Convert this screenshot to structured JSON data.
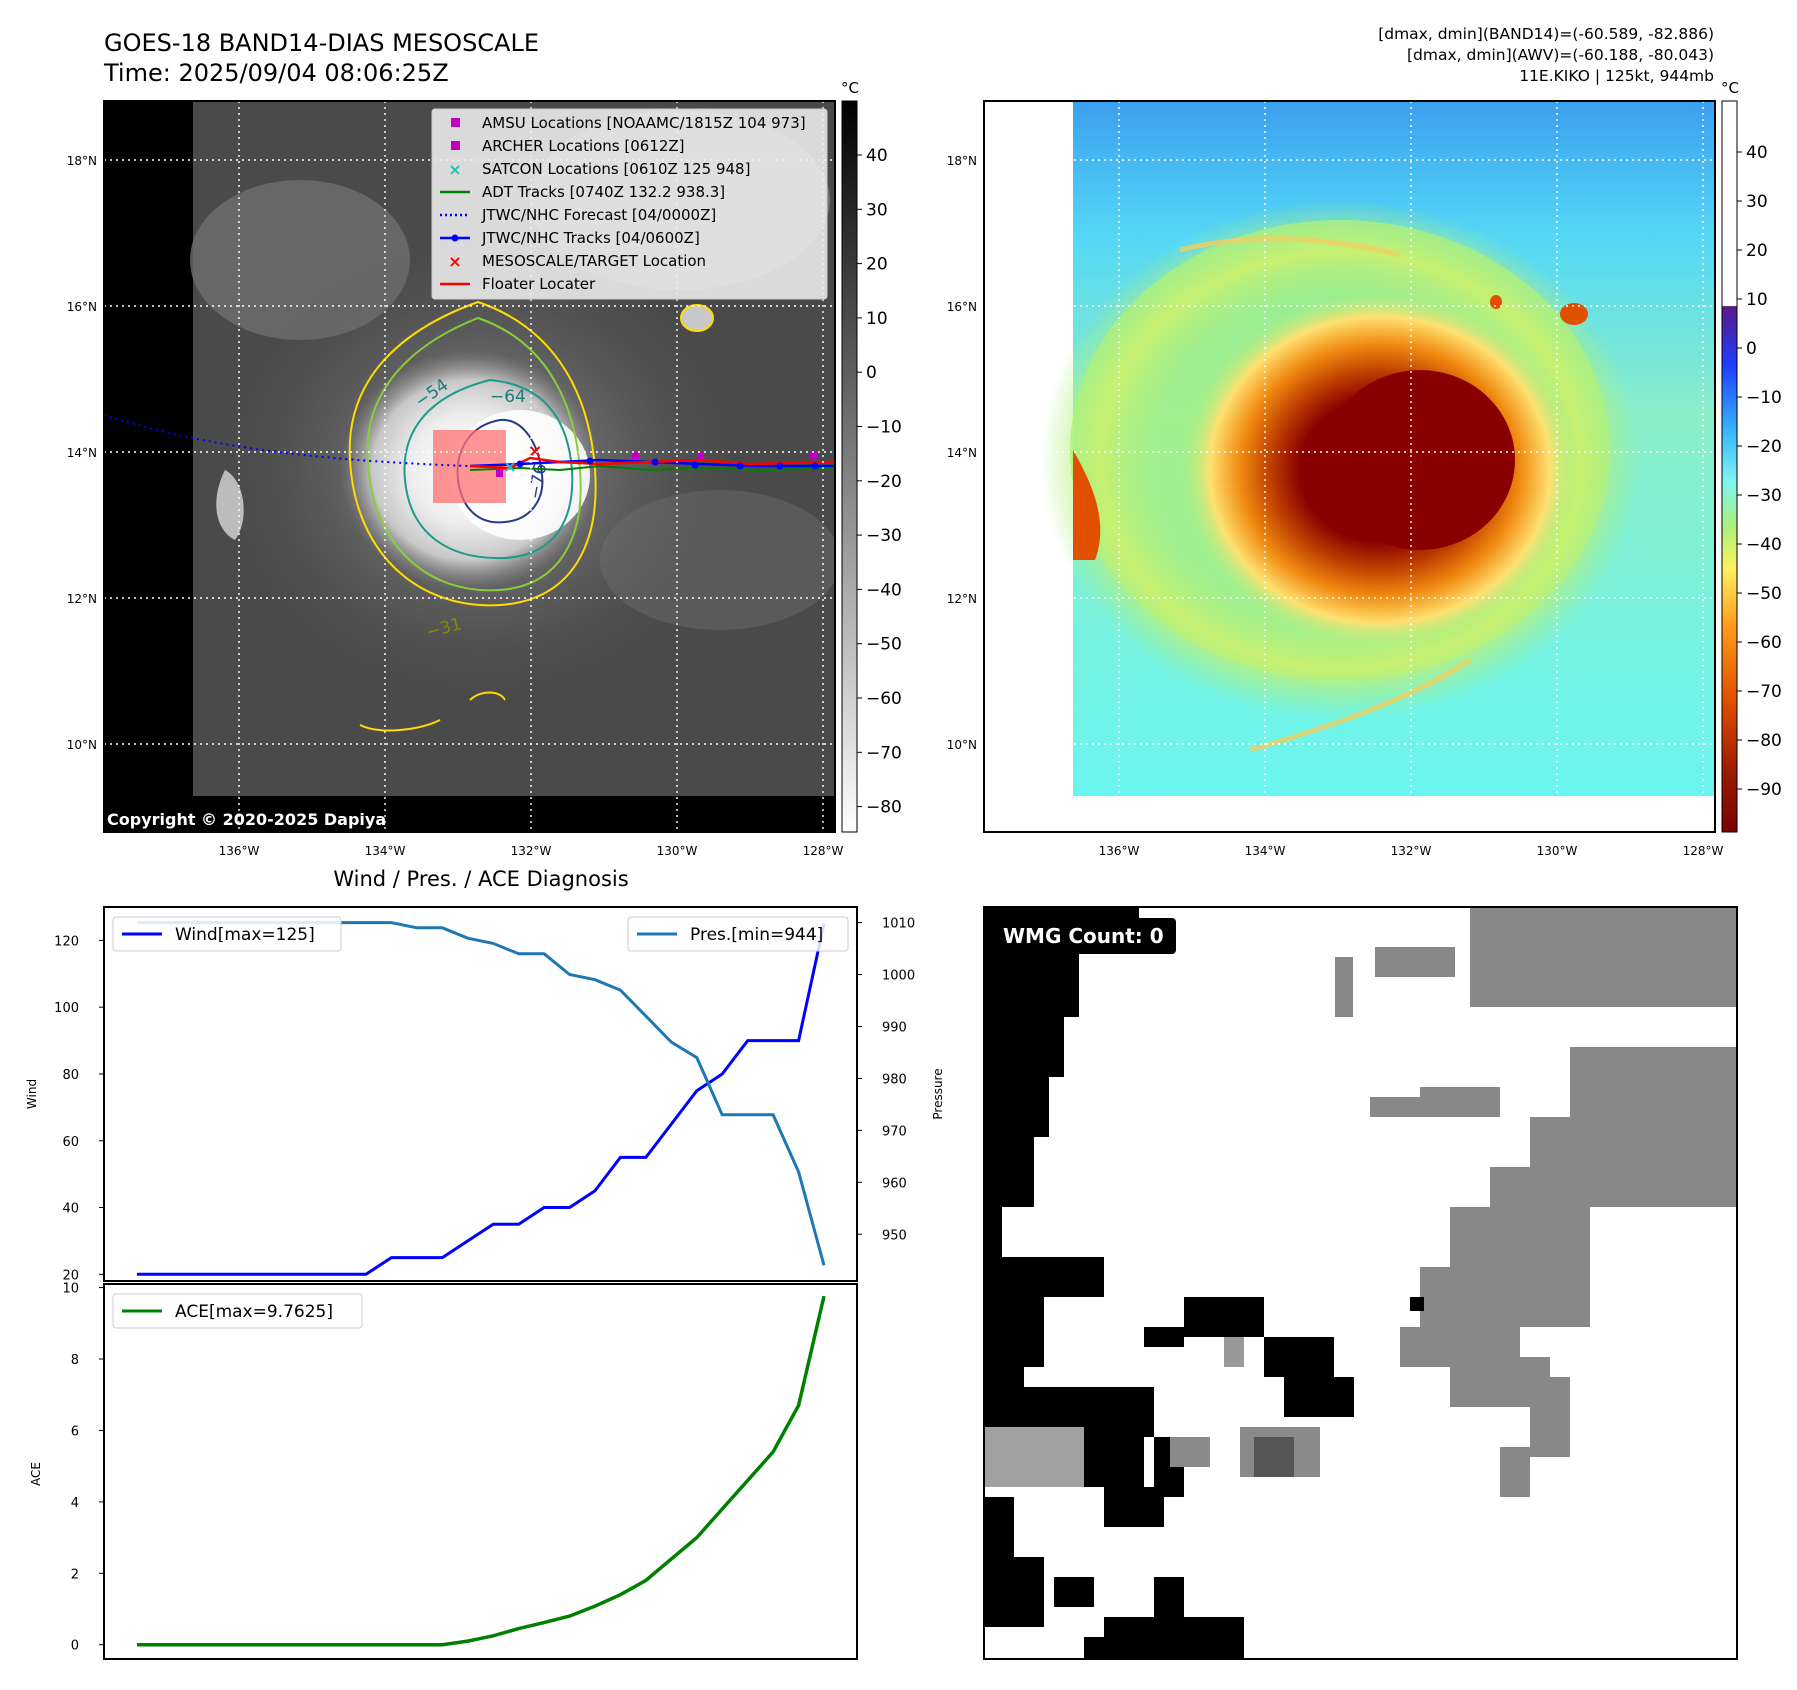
{
  "header": {
    "title_line1": "GOES-18 BAND14-DIAS MESOSCALE",
    "title_line2": "Time: 2025/09/04 08:06:25Z",
    "right_line1": "[dmax, dmin](BAND14)=(-60.589, -82.886)",
    "right_line2": "[dmax, dmin](AWV)=(-60.188, -80.043)",
    "right_line3": "11E.KIKO | 125kt, 944mb"
  },
  "map_axes": {
    "lat_ticks": [
      "18°N",
      "16°N",
      "14°N",
      "12°N",
      "10°N"
    ],
    "lon_ticks": [
      "136°W",
      "134°W",
      "132°W",
      "130°W",
      "128°W"
    ]
  },
  "ir_map": {
    "copyright": "Copyright © 2020-2025 Dapiya",
    "colorbar_unit": "°C",
    "colorbar_ticks": [
      "40",
      "30",
      "20",
      "10",
      "0",
      "−10",
      "−20",
      "−30",
      "−40",
      "−50",
      "−60",
      "−70",
      "−80"
    ],
    "contour_labels": [
      "−54",
      "−64",
      "−76",
      "−31"
    ],
    "legend": [
      {
        "label": "AMSU Locations [NOAAMC/1815Z 104 973]",
        "kind": "square",
        "color": "#c000c0"
      },
      {
        "label": "ARCHER Locations [0612Z]",
        "kind": "square",
        "color": "#c000c0"
      },
      {
        "label": "SATCON Locations [0610Z 125 948]",
        "kind": "x",
        "color": "#20c0c0"
      },
      {
        "label": "ADT Tracks [0740Z 132.2 938.3]",
        "kind": "line",
        "color": "#008000"
      },
      {
        "label": "JTWC/NHC Forecast [04/0000Z]",
        "kind": "dotted",
        "color": "#0000ff"
      },
      {
        "label": "JTWC/NHC Tracks [04/0600Z]",
        "kind": "line-dot",
        "color": "#0000ff"
      },
      {
        "label": "MESOSCALE/TARGET Location",
        "kind": "x",
        "color": "#ff0000"
      },
      {
        "label": "Floater Locater",
        "kind": "line",
        "color": "#ff0000"
      }
    ]
  },
  "awv_map": {
    "colorbar_unit": "°C",
    "colorbar_ticks": [
      "40",
      "30",
      "20",
      "10",
      "0",
      "−10",
      "−20",
      "−30",
      "−40",
      "−50",
      "−60",
      "−70",
      "−80",
      "−90"
    ]
  },
  "wind_pres": {
    "title": "Wind / Pres. / ACE Diagnosis",
    "wind_ylabel": "Wind",
    "pres_ylabel": "Pressure",
    "wind_legend": "Wind[max=125]",
    "pres_legend": "Pres.[min=944]",
    "wind_ticks": [
      "120",
      "100",
      "80",
      "60",
      "40",
      "20"
    ],
    "pres_ticks": [
      "1010",
      "1000",
      "990",
      "980",
      "970",
      "960",
      "950"
    ]
  },
  "ace": {
    "ylabel": "ACE",
    "legend": "ACE[max=9.7625]",
    "ticks": [
      "10",
      "8",
      "6",
      "4",
      "2",
      "0"
    ]
  },
  "wmg": {
    "label": "WMG Count: 0"
  },
  "chart_data": [
    {
      "type": "line",
      "name": "wind",
      "x": [
        0,
        1,
        2,
        3,
        4,
        5,
        6,
        7,
        8,
        9,
        10,
        11,
        12,
        13,
        14,
        15,
        16,
        17,
        18,
        19,
        20,
        21,
        22,
        23,
        24,
        25,
        26,
        27
      ],
      "values": [
        20,
        20,
        20,
        20,
        20,
        20,
        20,
        20,
        20,
        20,
        25,
        25,
        25,
        30,
        35,
        35,
        40,
        40,
        45,
        55,
        55,
        65,
        75,
        80,
        90,
        90,
        90,
        125
      ],
      "ylim": [
        18,
        130
      ]
    },
    {
      "type": "line",
      "name": "pressure",
      "x": [
        0,
        1,
        2,
        3,
        4,
        5,
        6,
        7,
        8,
        9,
        10,
        11,
        12,
        13,
        14,
        15,
        16,
        17,
        18,
        19,
        20,
        21,
        22,
        23,
        24,
        25,
        26,
        27
      ],
      "values": [
        1010,
        1010,
        1010,
        1010,
        1010,
        1010,
        1010,
        1010,
        1010,
        1010,
        1010,
        1009,
        1009,
        1007,
        1006,
        1004,
        1004,
        1000,
        999,
        997,
        992,
        987,
        984,
        973,
        973,
        973,
        962,
        944
      ],
      "ylim": [
        941,
        1013
      ]
    },
    {
      "type": "line",
      "name": "ace",
      "x": [
        0,
        1,
        2,
        3,
        4,
        5,
        6,
        7,
        8,
        9,
        10,
        11,
        12,
        13,
        14,
        15,
        16,
        17,
        18,
        19,
        20,
        21,
        22,
        23,
        24,
        25,
        26,
        27
      ],
      "values": [
        0,
        0,
        0,
        0,
        0,
        0,
        0,
        0,
        0,
        0,
        0,
        0,
        0,
        0.1,
        0.25,
        0.45,
        0.62,
        0.8,
        1.08,
        1.4,
        1.8,
        2.4,
        3.0,
        3.8,
        4.6,
        5.4,
        6.7,
        9.76
      ],
      "ylim": [
        -0.4,
        10.1
      ]
    }
  ]
}
